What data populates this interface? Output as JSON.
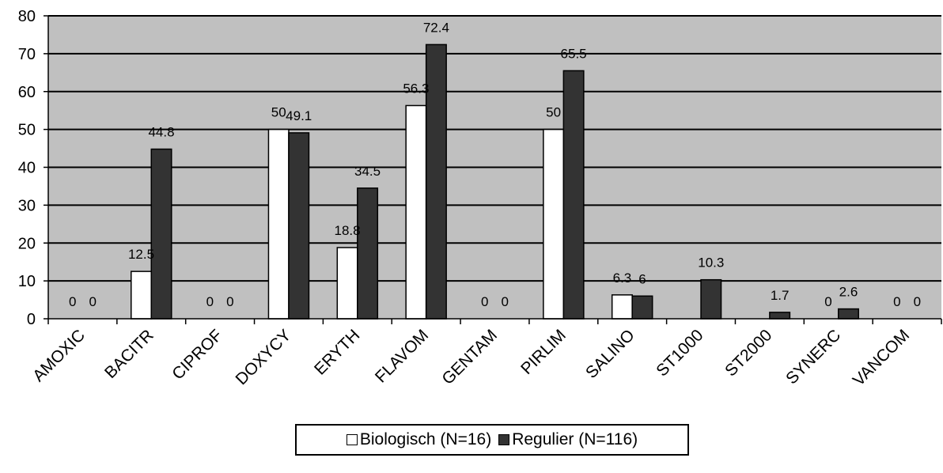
{
  "chart_data": {
    "type": "bar",
    "categories": [
      "AMOXIC",
      "BACITR",
      "CIPROF",
      "DOXYCY",
      "ERYTH",
      "FLAVOM",
      "GENTAM",
      "PIRLIM",
      "SALINO",
      "ST1000",
      "ST2000",
      "SYNERC",
      "VANCOM"
    ],
    "series": [
      {
        "name": "Biologisch (N=16)",
        "color": "#ffffff",
        "values": [
          0,
          12.5,
          0,
          50,
          18.8,
          56.3,
          0,
          50,
          6.3,
          null,
          null,
          0,
          0
        ],
        "labels": [
          "0",
          "12.5",
          "0",
          "50",
          "18.8",
          "56.3",
          "0",
          "50",
          "6.3",
          "",
          "",
          "0",
          "0"
        ]
      },
      {
        "name": "Regulier (N=116)",
        "color": "#333333",
        "values": [
          0,
          44.8,
          0,
          49.1,
          34.5,
          72.4,
          0,
          65.5,
          6,
          10.3,
          1.7,
          2.6,
          0
        ],
        "labels": [
          "0",
          "44.8",
          "0",
          "49.1",
          "34.5",
          "72.4",
          "0",
          "65.5",
          "6",
          "10.3",
          "1.7",
          "2.6",
          "0"
        ]
      }
    ],
    "ylim": [
      0,
      80
    ],
    "yticks": [
      "0",
      "10",
      "20",
      "30",
      "40",
      "50",
      "60",
      "70",
      "80"
    ],
    "xlabel": "",
    "ylabel": "",
    "title": "",
    "grid": true,
    "plot_background": "#c0c0c0",
    "legend_position": "bottom"
  }
}
